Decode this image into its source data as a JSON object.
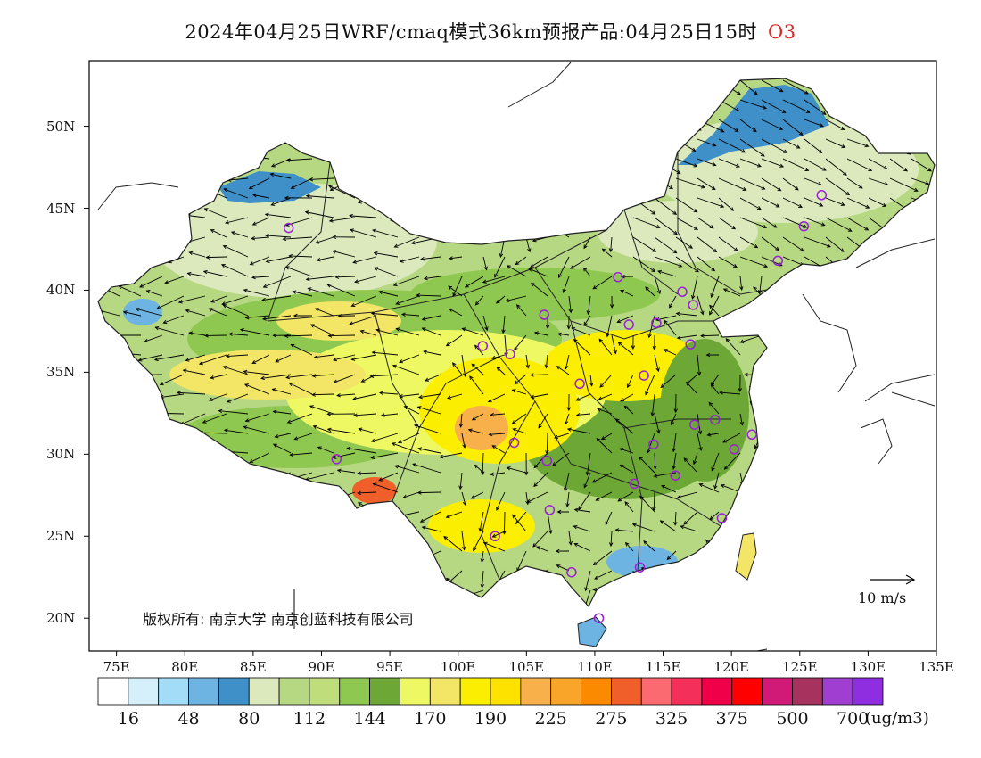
{
  "header": {
    "title": "2024年04月25日WRF/cmaq模式36km预报产品:04月25日15时",
    "species": "O3"
  },
  "map": {
    "lat_labels": [
      "50N",
      "45N",
      "40N",
      "35N",
      "30N",
      "25N",
      "20N"
    ],
    "lon_labels": [
      "75E",
      "80E",
      "85E",
      "90E",
      "95E",
      "100E",
      "105E",
      "110E",
      "115E",
      "120E",
      "125E",
      "130E",
      "135E"
    ],
    "copyright": "版权所有: 南京大学 南京创蓝科技有限公司",
    "wind_scale_label": "10 m/s",
    "station_marker_color": "#9a1fd6",
    "stations": [
      {
        "lon": 87.6,
        "lat": 43.8
      },
      {
        "lon": 91.1,
        "lat": 29.7
      },
      {
        "lon": 101.8,
        "lat": 36.6
      },
      {
        "lon": 103.8,
        "lat": 36.1
      },
      {
        "lon": 106.3,
        "lat": 38.5
      },
      {
        "lon": 111.7,
        "lat": 40.8
      },
      {
        "lon": 112.5,
        "lat": 37.9
      },
      {
        "lon": 114.5,
        "lat": 38.0
      },
      {
        "lon": 116.4,
        "lat": 39.9
      },
      {
        "lon": 117.2,
        "lat": 39.1
      },
      {
        "lon": 117.0,
        "lat": 36.7
      },
      {
        "lon": 113.6,
        "lat": 34.8
      },
      {
        "lon": 108.9,
        "lat": 34.3
      },
      {
        "lon": 104.1,
        "lat": 30.7
      },
      {
        "lon": 106.5,
        "lat": 29.6
      },
      {
        "lon": 114.3,
        "lat": 30.6
      },
      {
        "lon": 117.3,
        "lat": 31.8
      },
      {
        "lon": 118.8,
        "lat": 32.1
      },
      {
        "lon": 120.2,
        "lat": 30.3
      },
      {
        "lon": 121.5,
        "lat": 31.2
      },
      {
        "lon": 112.9,
        "lat": 28.2
      },
      {
        "lon": 115.9,
        "lat": 28.7
      },
      {
        "lon": 119.3,
        "lat": 26.1
      },
      {
        "lon": 113.3,
        "lat": 23.1
      },
      {
        "lon": 108.3,
        "lat": 22.8
      },
      {
        "lon": 110.3,
        "lat": 20.0
      },
      {
        "lon": 106.7,
        "lat": 26.6
      },
      {
        "lon": 102.7,
        "lat": 25.0
      },
      {
        "lon": 123.4,
        "lat": 41.8
      },
      {
        "lon": 125.3,
        "lat": 43.9
      },
      {
        "lon": 126.6,
        "lat": 45.8
      }
    ]
  },
  "colorbar": {
    "colors": [
      "#ffffff",
      "#d5effb",
      "#a3dcf6",
      "#6eb4e2",
      "#3f8fc8",
      "#dbe9bd",
      "#b7d883",
      "#c0dd7b",
      "#8fc850",
      "#6da836",
      "#eef863",
      "#f3e565",
      "#fcee00",
      "#fde200",
      "#f8b14a",
      "#f8a52a",
      "#fb8a00",
      "#f05f2a",
      "#fa6a70",
      "#f42f5a",
      "#f1004a",
      "#ff0000",
      "#d11a78",
      "#a8325e",
      "#9f3ed0",
      "#8e2ee0"
    ],
    "labels": [
      "16",
      "48",
      "80",
      "112",
      "144",
      "170",
      "190",
      "225",
      "275",
      "325",
      "375",
      "500",
      "700"
    ],
    "unit": "(ug/m3)"
  }
}
